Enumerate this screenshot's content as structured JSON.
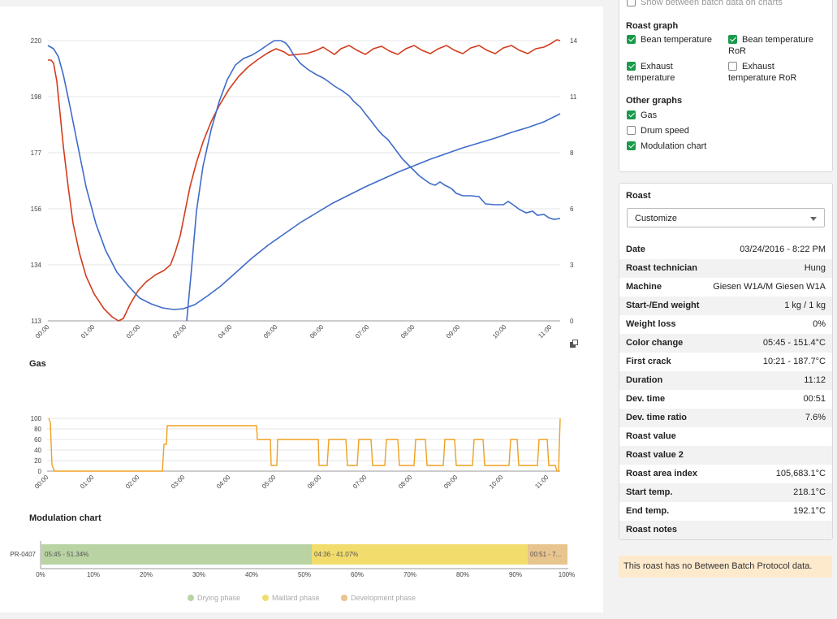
{
  "roast_chart": {
    "left_axis_ticks": [
      "220",
      "198",
      "177",
      "156",
      "134",
      "113"
    ],
    "right_axis_ticks": [
      "14",
      "11",
      "8",
      "6",
      "3",
      "0"
    ],
    "x_ticks": [
      "00:00",
      "01:00",
      "02:00",
      "03:00",
      "04:00",
      "05:00",
      "06:00",
      "07:00",
      "08:00",
      "09:00",
      "10:00",
      "11:00"
    ],
    "series_colors": {
      "exhaust": "#d23c1e",
      "bean": "#3f6bc9"
    },
    "reset_zoom_icon": "zoom-reset-icon"
  },
  "gas_chart": {
    "title": "Gas",
    "y_ticks": [
      "100",
      "80",
      "60",
      "40",
      "20",
      "0"
    ],
    "x_ticks": [
      "00:00",
      "01:00",
      "02:00",
      "03:00",
      "04:00",
      "05:00",
      "06:00",
      "07:00",
      "08:00",
      "09:00",
      "10:00",
      "11:00"
    ],
    "color": "#f0a020"
  },
  "modulation": {
    "title": "Modulation chart",
    "row_label": "PR-0407",
    "segments": [
      {
        "label": "05:45 - 51.34%",
        "percent": 51.34,
        "color": "#b9d3a3"
      },
      {
        "label": "04:36 - 41.07%",
        "percent": 41.07,
        "color": "#f2dc6c"
      },
      {
        "label": "00:51 - 7...",
        "percent": 7.59,
        "color": "#e8c48e"
      }
    ],
    "x_ticks": [
      "0%",
      "10%",
      "20%",
      "30%",
      "40%",
      "50%",
      "60%",
      "70%",
      "80%",
      "90%",
      "100%"
    ],
    "legend": [
      {
        "label": "Drying phase",
        "color": "#b9d3a3"
      },
      {
        "label": "Maillard phase",
        "color": "#f2dc6c"
      },
      {
        "label": "Development phase",
        "color": "#e8c48e"
      }
    ]
  },
  "options": {
    "top_cut_label": "Show between batch data on charts",
    "roast_graph_title": "Roast graph",
    "roast_graph": [
      {
        "label": "Bean temperature",
        "checked": true
      },
      {
        "label_line1": "Bean temperature",
        "label_line2": "RoR",
        "checked": true
      },
      {
        "label_line1": "Exhaust",
        "label_line2": "temperature",
        "checked": true
      },
      {
        "label_line1": "Exhaust",
        "label_line2": "temperature RoR",
        "checked": false
      }
    ],
    "other_graphs_title": "Other graphs",
    "other_graphs": [
      {
        "label": "Gas",
        "checked": true
      },
      {
        "label": "Drum speed",
        "checked": false
      },
      {
        "label": "Modulation chart",
        "checked": true
      }
    ]
  },
  "roast": {
    "title": "Roast",
    "select_value": "Customize",
    "rows": [
      {
        "key": "Date",
        "value": "03/24/2016 - 8:22 PM"
      },
      {
        "key": "Roast technician",
        "value": "Hung"
      },
      {
        "key": "Machine",
        "value": "Giesen W1A/M Giesen W1A"
      },
      {
        "key": "Start-/End weight",
        "value": "1 kg / 1 kg"
      },
      {
        "key": "Weight loss",
        "value": "0%"
      },
      {
        "key": "Color change",
        "value": "05:45 - 151.4°C"
      },
      {
        "key": "First crack",
        "value": "10:21 - 187.7°C"
      },
      {
        "key": "Duration",
        "value": "11:12"
      },
      {
        "key": "Dev. time",
        "value": "00:51"
      },
      {
        "key": "Dev. time ratio",
        "value": "7.6%"
      },
      {
        "key": "Roast value",
        "value": ""
      },
      {
        "key": "Roast value 2",
        "value": ""
      },
      {
        "key": "Roast area index",
        "value": "105,683.1°C"
      },
      {
        "key": "Start temp.",
        "value": "218.1°C"
      },
      {
        "key": "End temp.",
        "value": "192.1°C"
      },
      {
        "key": "Roast notes",
        "value": ""
      }
    ]
  },
  "notice": "This roast has no Between Batch Protocol data."
}
